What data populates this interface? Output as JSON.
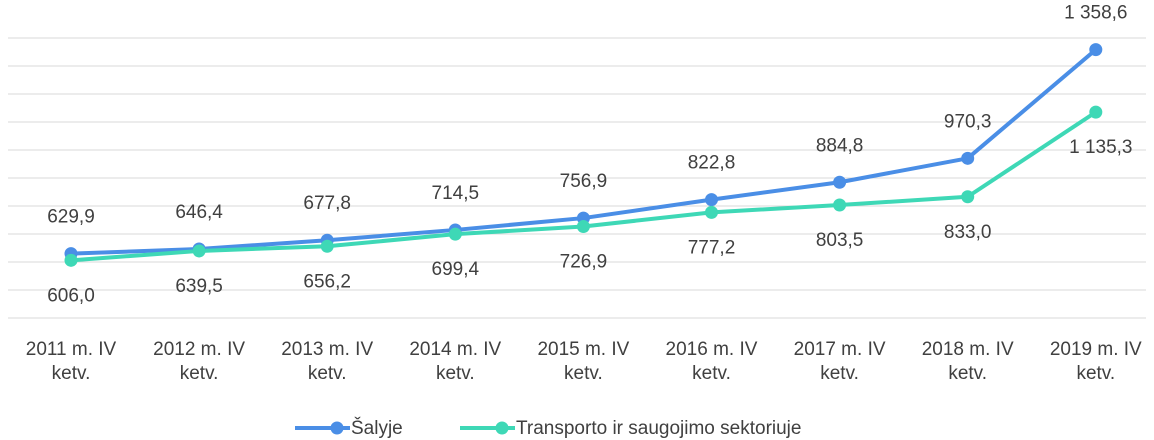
{
  "chart_data": {
    "type": "line",
    "categories": [
      "2011 m. IV ketv.",
      "2012 m. IV ketv.",
      "2013 m. IV ketv.",
      "2014 m. IV ketv.",
      "2015 m. IV ketv.",
      "2016 m. IV ketv.",
      "2017 m. IV ketv.",
      "2018 m. IV ketv.",
      "2019 m. IV ketv."
    ],
    "series": [
      {
        "name": "Šalyje",
        "color": "#4a8ee6",
        "values": [
          629.9,
          646.4,
          677.8,
          714.5,
          756.9,
          822.8,
          884.8,
          970.3,
          1358.6
        ],
        "value_labels": [
          "629,9",
          "646,4",
          "677,8",
          "714,5",
          "756,9",
          "822,8",
          "884,8",
          "970,3",
          "1 358,6"
        ]
      },
      {
        "name": "Transporto ir saugojimo sektoriuje",
        "color": "#3ed8b6",
        "values": [
          606.0,
          639.5,
          656.2,
          699.4,
          726.9,
          777.2,
          803.5,
          833.0,
          1135.3
        ],
        "value_labels": [
          "606,0",
          "639,5",
          "656,2",
          "699,4",
          "726,9",
          "777,2",
          "803,5",
          "833,0",
          "1 135,3"
        ]
      }
    ],
    "ylim": [
      400,
      1400
    ],
    "yticks": [
      400,
      500,
      600,
      700,
      800,
      900,
      1000,
      1100,
      1200,
      1300,
      1400
    ],
    "grid": true,
    "legend": "bottom"
  }
}
